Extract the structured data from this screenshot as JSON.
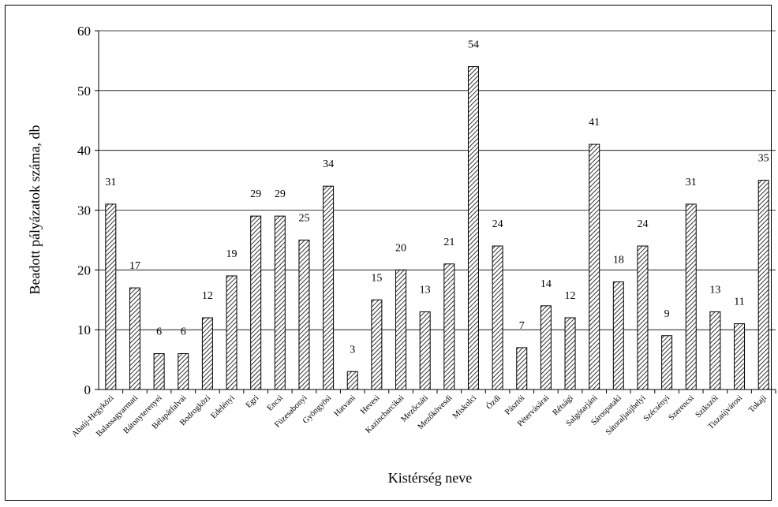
{
  "chart_data": {
    "type": "bar",
    "title": "",
    "xlabel": "Kistérség neve",
    "ylabel": "Beadott pályázatok száma, db",
    "ylim": [
      0,
      60
    ],
    "yticks": [
      "0",
      "10",
      "20",
      "30",
      "40",
      "50",
      "60"
    ],
    "grid": true,
    "bar_fill": "hatched",
    "categories": [
      "Abaúj-Hegyközi",
      "Balassagyarmati",
      "Bátonyterenyei",
      "Bélapátfalvai",
      "Bodrogközi",
      "Edelényi",
      "Egri",
      "Encsi",
      "Füzesabonyi",
      "Gyöngyösi",
      "Hatvani",
      "Hevesi",
      "Kazincbarcikai",
      "Mezőcsáti",
      "Mezőkövesdi",
      "Miskolci",
      "Ózdi",
      "Pásztói",
      "Pétervásárai",
      "Rétsági",
      "Salgótarjáni",
      "Sárospataki",
      "Sátoraljaújhelyi",
      "Szécsényi",
      "Szerencsi",
      "Szikszói",
      "Tiszaújvárosi",
      "Tokaji"
    ],
    "values": [
      31,
      17,
      6,
      6,
      12,
      19,
      29,
      29,
      25,
      34,
      3,
      15,
      20,
      13,
      21,
      54,
      24,
      7,
      14,
      12,
      41,
      18,
      24,
      9,
      31,
      13,
      11,
      35
    ]
  }
}
